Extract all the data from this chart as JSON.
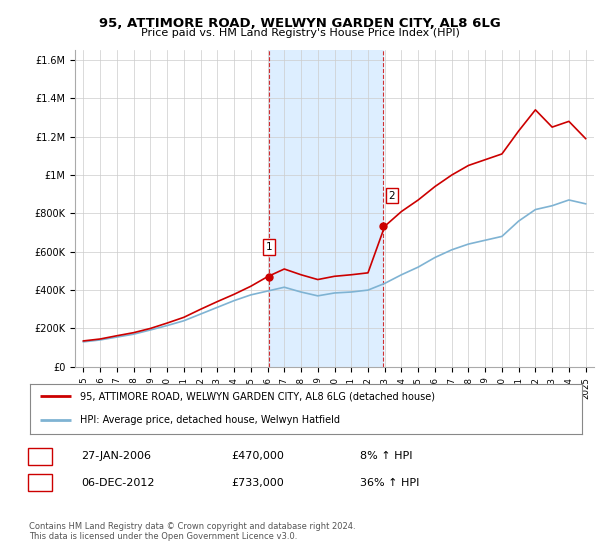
{
  "title": "95, ATTIMORE ROAD, WELWYN GARDEN CITY, AL8 6LG",
  "subtitle": "Price paid vs. HM Land Registry's House Price Index (HPI)",
  "ylabel_ticks": [
    "£0",
    "£200K",
    "£400K",
    "£600K",
    "£800K",
    "£1M",
    "£1.2M",
    "£1.4M",
    "£1.6M"
  ],
  "ytick_values": [
    0,
    200000,
    400000,
    600000,
    800000,
    1000000,
    1200000,
    1400000,
    1600000
  ],
  "ylim": [
    0,
    1650000
  ],
  "xlim_start": 1994.5,
  "xlim_end": 2025.5,
  "red_line_color": "#cc0000",
  "blue_line_color": "#7fb3d3",
  "purchase1_x": 2006.08,
  "purchase1_y": 470000,
  "purchase1_label": "1",
  "purchase2_x": 2012.92,
  "purchase2_y": 733000,
  "purchase2_label": "2",
  "vline1_x": 2006.08,
  "vline2_x": 2012.92,
  "legend_line1": "95, ATTIMORE ROAD, WELWYN GARDEN CITY, AL8 6LG (detached house)",
  "legend_line2": "HPI: Average price, detached house, Welwyn Hatfield",
  "table_row1": [
    "1",
    "27-JAN-2006",
    "£470,000",
    "8% ↑ HPI"
  ],
  "table_row2": [
    "2",
    "06-DEC-2012",
    "£733,000",
    "36% ↑ HPI"
  ],
  "footer": "Contains HM Land Registry data © Crown copyright and database right 2024.\nThis data is licensed under the Open Government Licence v3.0.",
  "background_color": "#ffffff",
  "plot_bg_color": "#ffffff",
  "shade_color": "#ddeeff",
  "years": [
    1995,
    1996,
    1997,
    1998,
    1999,
    2000,
    2001,
    2002,
    2003,
    2004,
    2005,
    2006,
    2007,
    2008,
    2009,
    2010,
    2011,
    2012,
    2013,
    2014,
    2015,
    2016,
    2017,
    2018,
    2019,
    2020,
    2021,
    2022,
    2023,
    2024,
    2025
  ],
  "hpi_values": [
    130000,
    140000,
    155000,
    170000,
    192000,
    215000,
    240000,
    275000,
    310000,
    345000,
    375000,
    395000,
    415000,
    390000,
    370000,
    385000,
    390000,
    400000,
    435000,
    480000,
    520000,
    570000,
    610000,
    640000,
    660000,
    680000,
    760000,
    820000,
    840000,
    870000,
    850000
  ],
  "red_values": [
    135000,
    145000,
    162000,
    178000,
    200000,
    228000,
    258000,
    300000,
    340000,
    378000,
    420000,
    470000,
    510000,
    480000,
    455000,
    472000,
    480000,
    490000,
    733000,
    810000,
    870000,
    940000,
    1000000,
    1050000,
    1080000,
    1110000,
    1230000,
    1340000,
    1250000,
    1280000,
    1190000
  ]
}
